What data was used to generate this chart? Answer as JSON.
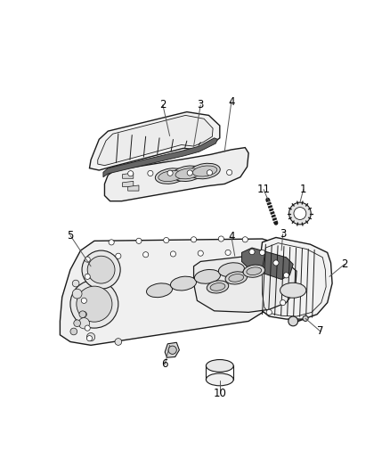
{
  "bg_color": "#ffffff",
  "fig_width": 4.38,
  "fig_height": 5.33,
  "line_color": "#1a1a1a",
  "fill_light": "#f5f5f5",
  "fill_mid": "#e0e0e0",
  "fill_dark": "#c8c8c8",
  "fill_gasket": "#555555"
}
